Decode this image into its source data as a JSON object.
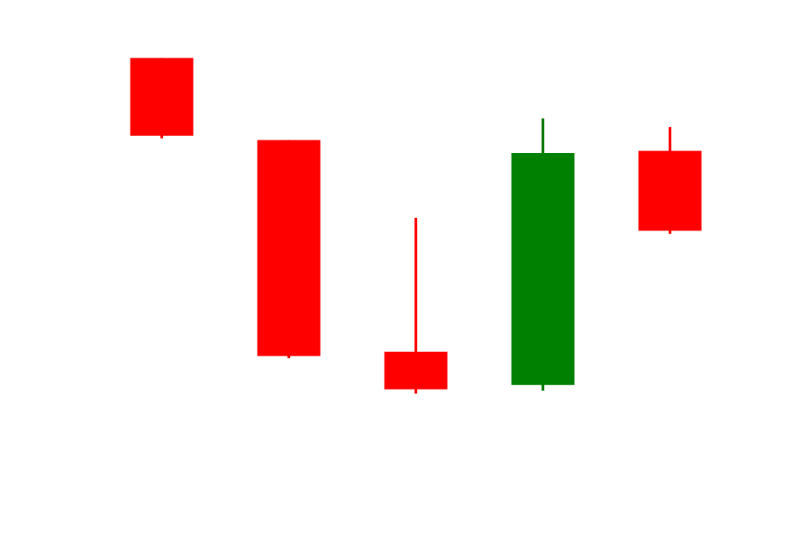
{
  "chart_data": {
    "type": "candlestick",
    "title": "",
    "xlabel": "",
    "ylabel": "",
    "axes_visible": false,
    "grid": false,
    "ylim": [
      0,
      100
    ],
    "colors": {
      "up": "#008000",
      "down": "#ff0000",
      "background": "#ffffff"
    },
    "candles": [
      {
        "open": 97.0,
        "high": 97.0,
        "low": 78.4,
        "close": 79.0
      },
      {
        "open": 78.0,
        "high": 78.0,
        "low": 27.5,
        "close": 28.0
      },
      {
        "open": 29.0,
        "high": 60.0,
        "low": 19.3,
        "close": 20.3
      },
      {
        "open": 21.3,
        "high": 83.0,
        "low": 20.0,
        "close": 75.0
      },
      {
        "open": 75.5,
        "high": 81.0,
        "low": 56.3,
        "close": 57.0
      }
    ]
  }
}
